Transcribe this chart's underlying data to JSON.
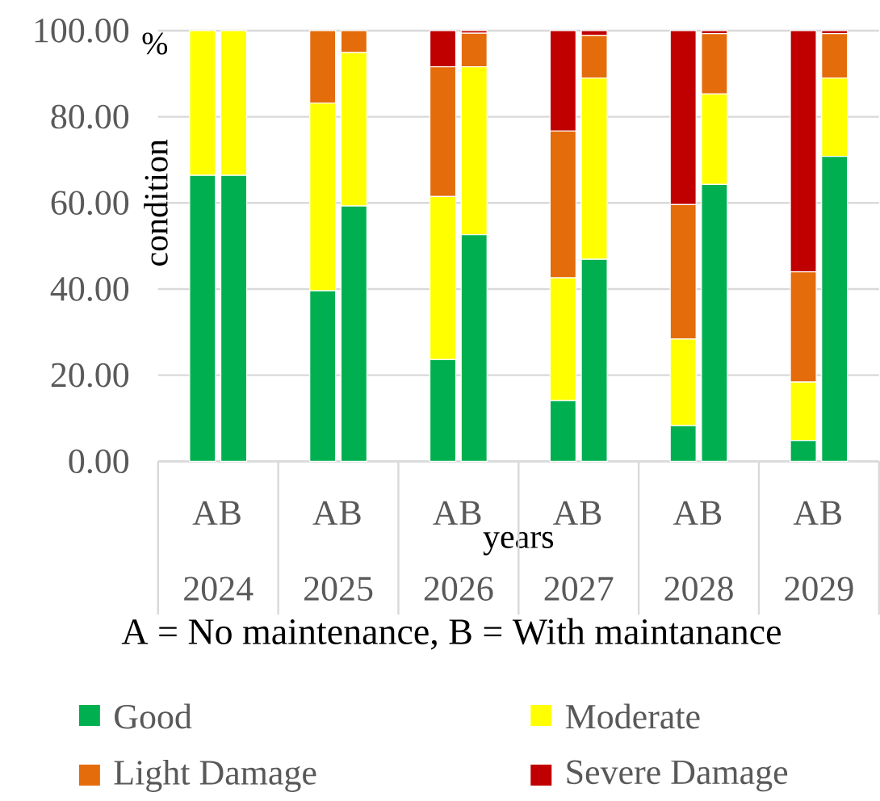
{
  "chart_data": {
    "type": "bar",
    "stacked": true,
    "xlabel": "years",
    "ylabel": "condition",
    "categories": [
      "A",
      "B",
      "A",
      "B",
      "A",
      "B",
      "A",
      "B",
      "A",
      "B",
      "A",
      "B"
    ],
    "series": [
      {
        "name": "Good",
        "color": "#00b050",
        "values": [
          66.4,
          66.4,
          39.6,
          59.3,
          23.6,
          52.6,
          14.1,
          46.9,
          8.3,
          64.3,
          4.8,
          70.8
        ]
      },
      {
        "name": "Moderate",
        "color": "#ffff00",
        "values": [
          33.6,
          33.6,
          43.6,
          35.6,
          37.9,
          39.0,
          28.5,
          42.1,
          20.1,
          21.0,
          13.6,
          18.2
        ]
      },
      {
        "name": "Light Damage",
        "color": "#e46c0a",
        "values": [
          0,
          0,
          16.8,
          5.1,
          30.1,
          7.8,
          34.1,
          9.9,
          31.2,
          14.0,
          25.6,
          10.3
        ]
      },
      {
        "name": "Severe Damage",
        "color": "#c00000",
        "values": [
          0,
          0,
          0,
          0,
          8.4,
          0.6,
          23.3,
          1.1,
          40.4,
          0.7,
          56.0,
          0.7
        ]
      }
    ],
    "ylim": [
      0,
      100
    ],
    "yticks": [
      {
        "value": 0,
        "label": "0.00"
      },
      {
        "value": 20,
        "label": "20.00"
      },
      {
        "value": 40,
        "label": "40.00"
      },
      {
        "value": 60,
        "label": "60.00"
      },
      {
        "value": 80,
        "label": "80.00"
      },
      {
        "value": 100,
        "label": "100.00"
      }
    ],
    "grid": "y",
    "legend": "bottom",
    "annotations": [
      "2024",
      "2025",
      "2026",
      "2027",
      "2028",
      "2029",
      "A = No maintenance, B = With maintanance",
      "%"
    ]
  }
}
